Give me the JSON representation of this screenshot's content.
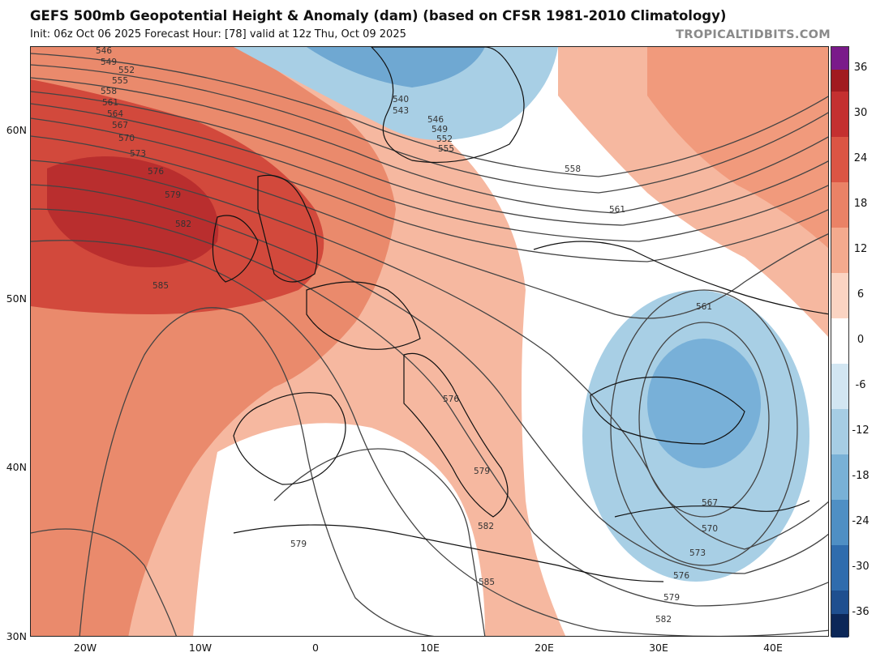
{
  "header": {
    "title": "GEFS 500mb Geopotential Height & Anomaly (dam) (based on CFSR 1981-2010 Climatology)",
    "subtitle": "Init: 06z Oct 06 2025   Forecast Hour: [78]   valid at 12z Thu, Oct 09 2025",
    "brand": "TROPICALTIDBITS.COM"
  },
  "map": {
    "region": "Europe / North Atlantic / Mediterranean",
    "lat_labels": [
      "60N",
      "50N",
      "40N",
      "30N"
    ],
    "lon_labels": [
      "20W",
      "10W",
      "0",
      "10E",
      "20E",
      "30E",
      "40E"
    ],
    "contour_labels": [
      "546",
      "549",
      "552",
      "555",
      "558",
      "561",
      "564",
      "567",
      "570",
      "573",
      "576",
      "579",
      "582",
      "585",
      "540",
      "543",
      "546",
      "549",
      "552",
      "555",
      "558",
      "561",
      "561",
      "576",
      "579",
      "582",
      "585",
      "579",
      "567",
      "570",
      "573",
      "576",
      "579",
      "582"
    ],
    "colors": {
      "positive_strong": "#c42d2d",
      "positive_mid": "#e4725a",
      "positive_weak": "#f3ae93",
      "negative_weak": "#a8cfe5",
      "negative_mid": "#6ea8d2",
      "contour_line": "#444444"
    }
  },
  "colorbar": {
    "labels": [
      "36",
      "30",
      "24",
      "18",
      "12",
      "6",
      "0",
      "-6",
      "-12",
      "-18",
      "-24",
      "-30",
      "-36"
    ],
    "colors": [
      "#7a1a8a",
      "#a11b20",
      "#c43030",
      "#db5544",
      "#ea8266",
      "#f4aa8e",
      "#fbd4c2",
      "#ffffff",
      "#ffffff",
      "#d2e6f2",
      "#a6cde4",
      "#79b1d6",
      "#4f8fc4",
      "#2f6cad",
      "#1f4f8f",
      "#143a73",
      "#0c2758"
    ]
  }
}
